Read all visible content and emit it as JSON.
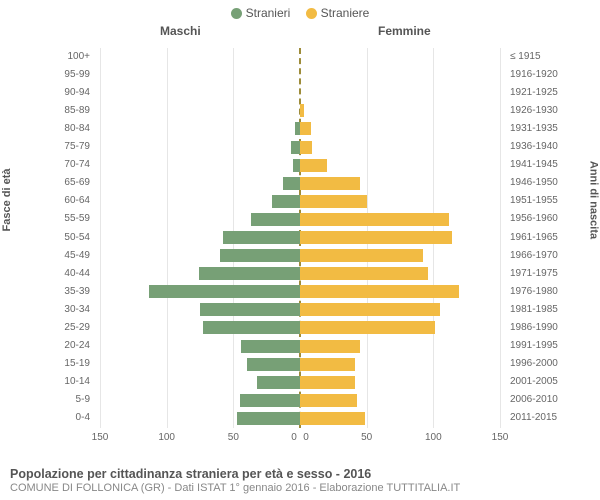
{
  "legend": {
    "male": {
      "label": "Stranieri",
      "color": "#77a076"
    },
    "female": {
      "label": "Straniere",
      "color": "#f2bb43"
    }
  },
  "headers": {
    "male": "Maschi",
    "female": "Femmine"
  },
  "axis_titles": {
    "left": "Fasce di età",
    "right": "Anni di nascita"
  },
  "chart": {
    "type": "population-pyramid",
    "background_color": "#ffffff",
    "grid_color": "#e6e6e6",
    "divider_color": "#9e8c3a",
    "tick_fontsize": 10,
    "label_fontsize": 10,
    "axis_title_fontsize": 11,
    "xlim": 150,
    "xtick_step": 50
  },
  "x_ticks": [
    "150",
    "100",
    "50",
    "0",
    "0",
    "50",
    "100",
    "150"
  ],
  "rows": [
    {
      "age": "100+",
      "birth": "≤ 1915",
      "m": 0,
      "f": 0
    },
    {
      "age": "95-99",
      "birth": "1916-1920",
      "m": 0,
      "f": 0
    },
    {
      "age": "90-94",
      "birth": "1921-1925",
      "m": 0,
      "f": 0
    },
    {
      "age": "85-89",
      "birth": "1926-1930",
      "m": 0,
      "f": 3
    },
    {
      "age": "80-84",
      "birth": "1931-1935",
      "m": 4,
      "f": 8
    },
    {
      "age": "75-79",
      "birth": "1936-1940",
      "m": 7,
      "f": 9
    },
    {
      "age": "70-74",
      "birth": "1941-1945",
      "m": 5,
      "f": 20
    },
    {
      "age": "65-69",
      "birth": "1946-1950",
      "m": 13,
      "f": 45
    },
    {
      "age": "60-64",
      "birth": "1951-1955",
      "m": 21,
      "f": 50
    },
    {
      "age": "55-59",
      "birth": "1956-1960",
      "m": 37,
      "f": 112
    },
    {
      "age": "50-54",
      "birth": "1961-1965",
      "m": 58,
      "f": 114
    },
    {
      "age": "45-49",
      "birth": "1966-1970",
      "m": 60,
      "f": 92
    },
    {
      "age": "40-44",
      "birth": "1971-1975",
      "m": 76,
      "f": 96
    },
    {
      "age": "35-39",
      "birth": "1976-1980",
      "m": 113,
      "f": 119
    },
    {
      "age": "30-34",
      "birth": "1981-1985",
      "m": 75,
      "f": 105
    },
    {
      "age": "25-29",
      "birth": "1986-1990",
      "m": 73,
      "f": 101
    },
    {
      "age": "20-24",
      "birth": "1991-1995",
      "m": 44,
      "f": 45
    },
    {
      "age": "15-19",
      "birth": "1996-2000",
      "m": 40,
      "f": 41
    },
    {
      "age": "10-14",
      "birth": "2001-2005",
      "m": 32,
      "f": 41
    },
    {
      "age": "5-9",
      "birth": "2006-2010",
      "m": 45,
      "f": 43
    },
    {
      "age": "0-4",
      "birth": "2011-2015",
      "m": 47,
      "f": 49
    }
  ],
  "footer": {
    "title": "Popolazione per cittadinanza straniera per età e sesso - 2016",
    "subtitle": "COMUNE DI FOLLONICA (GR) - Dati ISTAT 1° gennaio 2016 - Elaborazione TUTTITALIA.IT"
  }
}
